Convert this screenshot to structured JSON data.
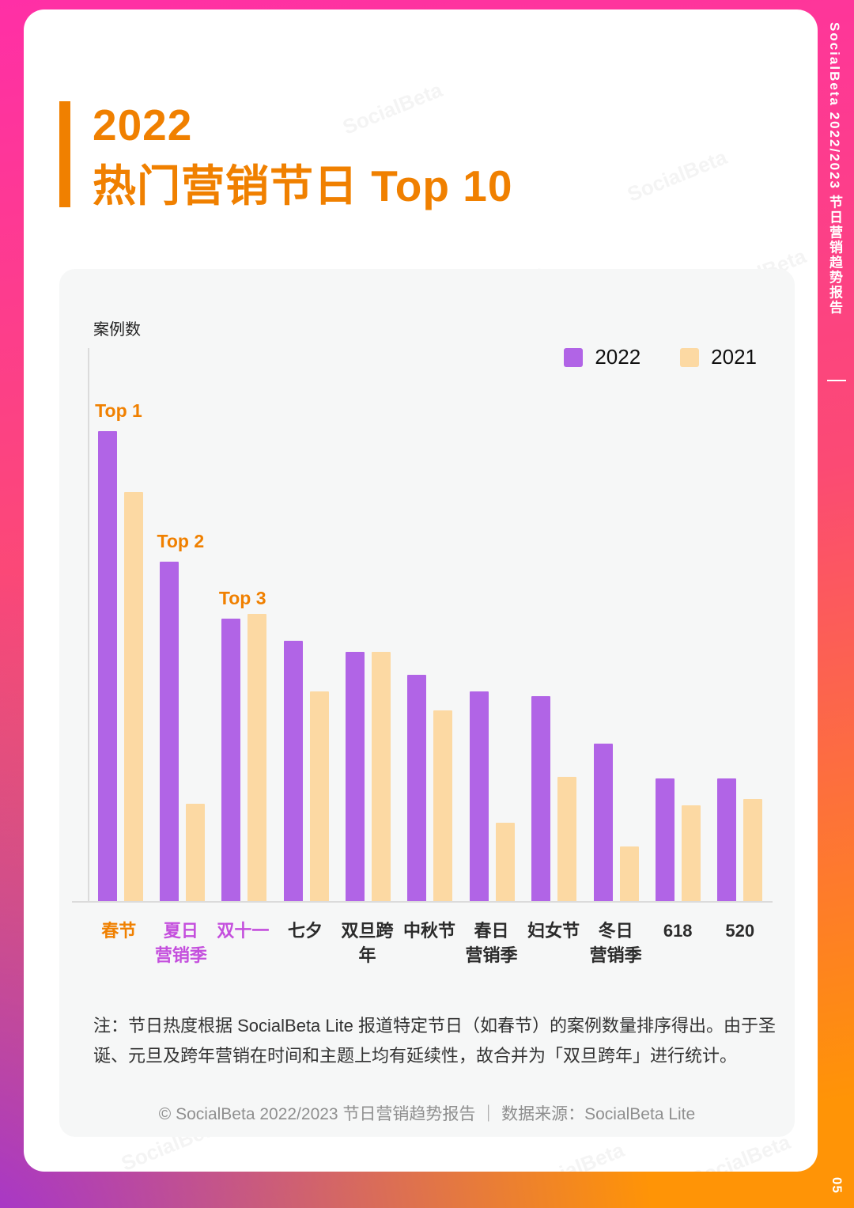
{
  "page": {
    "accent_orange": "#f08000",
    "gradient_colors": [
      "#ff2fa6",
      "#fb4a74",
      "#ff9406",
      "#9928e6"
    ]
  },
  "sidebar": {
    "report_title": "SocialBeta 2022/2023 节日营销趋势报告",
    "page_number": "05"
  },
  "header": {
    "title_line1": "2022",
    "title_line2": "热门营销节日 Top 10"
  },
  "watermark": {
    "text": "SocialBeta"
  },
  "chart_data": {
    "type": "bar",
    "title": "2022 热门营销节日 Top 10",
    "xlabel": "",
    "ylabel": "案例数",
    "ylim": [
      0,
      700
    ],
    "grid": false,
    "legend_position": "top-right",
    "categories": [
      "春节",
      "夏日\n营销季",
      "双十一",
      "七夕",
      "双旦跨年",
      "中秋节",
      "春日\n营销季",
      "妇女节",
      "冬日\n营销季",
      "618",
      "520"
    ],
    "category_colors": [
      "#f08000",
      "#c44fdd",
      "#c44fdd",
      "#2b2b2b",
      "#2b2b2b",
      "#2b2b2b",
      "#2b2b2b",
      "#2b2b2b",
      "#2b2b2b",
      "#2b2b2b",
      "#2b2b2b"
    ],
    "series": [
      {
        "name": "2022",
        "color": "#b164e6",
        "values": [
          595,
          430,
          358,
          330,
          316,
          287,
          266,
          260,
          200,
          156,
          156
        ]
      },
      {
        "name": "2021",
        "color": "#fcd9a3",
        "values": [
          518,
          124,
          364,
          266,
          316,
          242,
          100,
          158,
          70,
          122,
          130
        ]
      }
    ],
    "top_labels": [
      {
        "index": 0,
        "text": "Top 1"
      },
      {
        "index": 1,
        "text": "Top 2"
      },
      {
        "index": 2,
        "text": "Top 3"
      }
    ]
  },
  "note": "注：节日热度根据 SocialBeta Lite 报道特定节日（如春节）的案例数量排序得出。由于圣诞、元旦及跨年营销在时间和主题上均有延续性，故合并为「双旦跨年」进行统计。",
  "footer": "© SocialBeta 2022/2023 节日营销趋势报告 ｜ 数据来源：SocialBeta Lite"
}
